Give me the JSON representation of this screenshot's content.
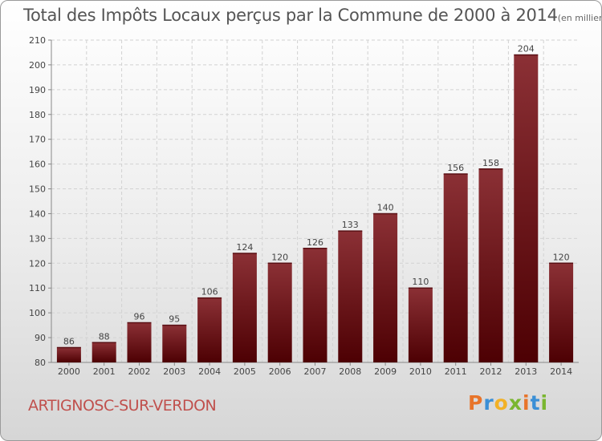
{
  "header": {
    "title": "Total des Impôts Locaux perçus par la Commune de 2000 à 2014",
    "units": "(en milliers d'€)"
  },
  "footer": {
    "commune": "ARTIGNOSC-SUR-VERDON",
    "brand": "Proxiti",
    "brand_colors": [
      "#e8742a",
      "#3a8fd6",
      "#f2b126",
      "#7ab630",
      "#e8742a",
      "#3a8fd6",
      "#7ab630"
    ]
  },
  "chart_data": {
    "type": "bar",
    "title": "Total des Impôts Locaux perçus par la Commune de 2000 à 2014",
    "xlabel": "",
    "ylabel": "",
    "categories": [
      "2000",
      "2001",
      "2002",
      "2003",
      "2004",
      "2005",
      "2006",
      "2007",
      "2008",
      "2009",
      "2010",
      "2011",
      "2012",
      "2013",
      "2014"
    ],
    "values": [
      86,
      88,
      96,
      95,
      106,
      124,
      120,
      126,
      133,
      140,
      110,
      156,
      158,
      204,
      120
    ],
    "ylim": [
      80,
      210
    ],
    "yticks": [
      80,
      90,
      100,
      110,
      120,
      130,
      140,
      150,
      160,
      170,
      180,
      190,
      200,
      210
    ],
    "grid": true,
    "bar_color_top": "#8b3035",
    "bar_color_bottom": "#4d0003",
    "data_labels": true
  }
}
